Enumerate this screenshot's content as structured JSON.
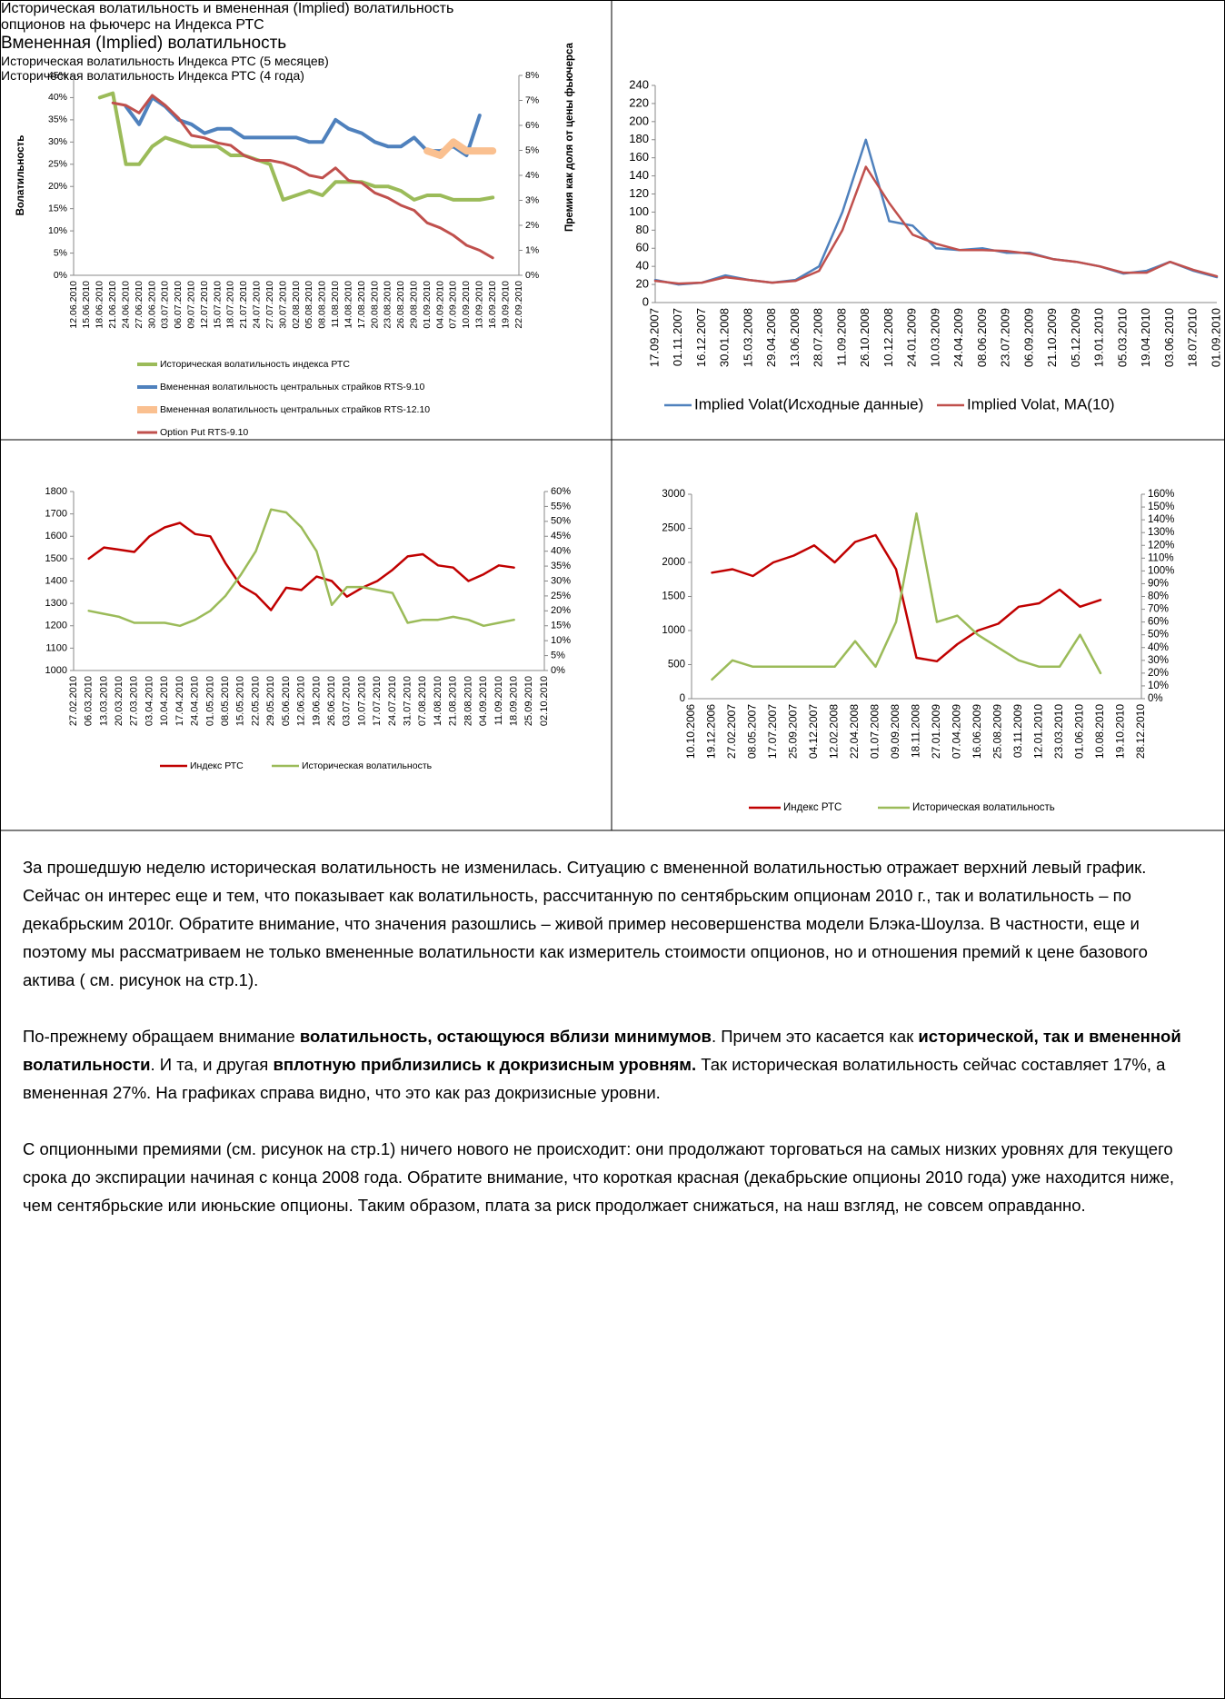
{
  "chart_data": [
    {
      "type": "line",
      "title": "Историческая волатильность и вмененная (Implied) волатильность опционов на фьючерс на Индекса РТС",
      "ylabel": "Волатильность",
      "y2label": "Премия как доля от цены фьючерса",
      "categories": [
        "12.06.2010",
        "15.06.2010",
        "18.06.2010",
        "21.06.2010",
        "24.06.2010",
        "27.06.2010",
        "30.06.2010",
        "03.07.2010",
        "06.07.2010",
        "09.07.2010",
        "12.07.2010",
        "15.07.2010",
        "18.07.2010",
        "21.07.2010",
        "24.07.2010",
        "27.07.2010",
        "30.07.2010",
        "02.08.2010",
        "05.08.2010",
        "08.08.2010",
        "11.08.2010",
        "14.08.2010",
        "17.08.2010",
        "20.08.2010",
        "23.08.2010",
        "26.08.2010",
        "29.08.2010",
        "01.09.2010",
        "04.09.2010",
        "07.09.2010",
        "10.09.2010",
        "13.09.2010",
        "16.09.2010",
        "19.09.2010",
        "22.09.2010"
      ],
      "ylim": [
        0,
        45
      ],
      "yticks": [
        {
          "value": 0,
          "label": "0%"
        },
        {
          "value": 5,
          "label": "5%"
        },
        {
          "value": 10,
          "label": "10%"
        },
        {
          "value": 15,
          "label": "15%"
        },
        {
          "value": 20,
          "label": "20%"
        },
        {
          "value": 25,
          "label": "25%"
        },
        {
          "value": 30,
          "label": "30%"
        },
        {
          "value": 35,
          "label": "35%"
        },
        {
          "value": 40,
          "label": "40%"
        },
        {
          "value": 45,
          "label": "45%"
        }
      ],
      "y2lim": [
        0,
        8
      ],
      "y2ticks": [
        {
          "value": 0,
          "label": "0%"
        },
        {
          "value": 1,
          "label": "1%"
        },
        {
          "value": 2,
          "label": "2%"
        },
        {
          "value": 3,
          "label": "3%"
        },
        {
          "value": 4,
          "label": "4%"
        },
        {
          "value": 5,
          "label": "5%"
        },
        {
          "value": 6,
          "label": "6%"
        },
        {
          "value": 7,
          "label": "7%"
        },
        {
          "value": 8,
          "label": "8%"
        }
      ],
      "series": [
        {
          "name": "Историческая волатильность индекса РТС",
          "color": "#9bbb59",
          "values": [
            null,
            null,
            40,
            41,
            25,
            25,
            29,
            31,
            30,
            29,
            29,
            29,
            27,
            27,
            26,
            25,
            17,
            18,
            19,
            18,
            21,
            21,
            21,
            20,
            20,
            19,
            17,
            18,
            18,
            17,
            17,
            17,
            17.5,
            null,
            null
          ]
        },
        {
          "name": "Вмененная волатильность центральных страйков  RTS-9.10",
          "color": "#4f81bd",
          "values": [
            null,
            null,
            null,
            null,
            38,
            34,
            40,
            38,
            35,
            34,
            32,
            33,
            33,
            31,
            31,
            31,
            31,
            31,
            30,
            30,
            35,
            33,
            32,
            30,
            29,
            29,
            31,
            28,
            28,
            29,
            27,
            36,
            null,
            null,
            null
          ]
        },
        {
          "name": "Вмененная волатильность центральных страйков  RTS-12.10",
          "color": "#fac090",
          "values": [
            null,
            null,
            null,
            null,
            null,
            null,
            null,
            null,
            null,
            null,
            null,
            null,
            null,
            null,
            null,
            null,
            null,
            null,
            null,
            null,
            null,
            null,
            null,
            null,
            null,
            null,
            null,
            28,
            27,
            30,
            28,
            28,
            28,
            null,
            null
          ]
        },
        {
          "name": "Option Put RTS-9.10",
          "color": "#c0504d",
          "axis": "y2",
          "values": [
            null,
            null,
            null,
            6.9,
            6.8,
            6.5,
            7.2,
            6.8,
            6.3,
            5.6,
            5.5,
            5.3,
            5.2,
            4.8,
            4.6,
            4.6,
            4.5,
            4.3,
            4.0,
            3.9,
            4.3,
            3.8,
            3.7,
            3.3,
            3.1,
            2.8,
            2.6,
            2.1,
            1.9,
            1.6,
            1.2,
            1.0,
            0.7,
            null,
            null
          ]
        }
      ]
    },
    {
      "type": "line",
      "title": "Вмененная (Implied) волатильность",
      "categories": [
        "17.09.2007",
        "01.11.2007",
        "16.12.2007",
        "30.01.2008",
        "15.03.2008",
        "29.04.2008",
        "13.06.2008",
        "28.07.2008",
        "11.09.2008",
        "26.10.2008",
        "10.12.2008",
        "24.01.2009",
        "10.03.2009",
        "24.04.2009",
        "08.06.2009",
        "23.07.2009",
        "06.09.2009",
        "21.10.2009",
        "05.12.2009",
        "19.01.2010",
        "05.03.2010",
        "19.04.2010",
        "03.06.2010",
        "18.07.2010",
        "01.09.2010"
      ],
      "ylim": [
        0,
        240
      ],
      "yticks": [
        0,
        20,
        40,
        60,
        80,
        100,
        120,
        140,
        160,
        180,
        200,
        220,
        240
      ],
      "series": [
        {
          "name": "Implied Volat(Исходные данные)",
          "color": "#4f81bd",
          "values": [
            25,
            20,
            22,
            30,
            25,
            22,
            25,
            40,
            100,
            180,
            90,
            85,
            60,
            58,
            60,
            55,
            55,
            48,
            45,
            40,
            32,
            35,
            45,
            35,
            28
          ]
        },
        {
          "name": "Implied Volat, MA(10)",
          "color": "#c0504d",
          "values": [
            24,
            21,
            22,
            28,
            25,
            22,
            24,
            35,
            80,
            150,
            110,
            75,
            65,
            58,
            58,
            57,
            54,
            48,
            45,
            40,
            33,
            33,
            45,
            36,
            29
          ]
        }
      ]
    },
    {
      "type": "line",
      "title": "Историческая волатильность  Индекса РТС (5 месяцев)",
      "categories": [
        "27.02.2010",
        "06.03.2010",
        "13.03.2010",
        "20.03.2010",
        "27.03.2010",
        "03.04.2010",
        "10.04.2010",
        "17.04.2010",
        "24.04.2010",
        "01.05.2010",
        "08.05.2010",
        "15.05.2010",
        "22.05.2010",
        "29.05.2010",
        "05.06.2010",
        "12.06.2010",
        "19.06.2010",
        "26.06.2010",
        "03.07.2010",
        "10.07.2010",
        "17.07.2010",
        "24.07.2010",
        "31.07.2010",
        "07.08.2010",
        "14.08.2010",
        "21.08.2010",
        "28.08.2010",
        "04.09.2010",
        "11.09.2010",
        "18.09.2010",
        "25.09.2010",
        "02.10.2010"
      ],
      "ylim": [
        1000,
        1800
      ],
      "yticks": [
        1000,
        1100,
        1200,
        1300,
        1400,
        1500,
        1600,
        1700,
        1800
      ],
      "y2lim": [
        0,
        60
      ],
      "y2ticks": [
        {
          "value": 0,
          "label": "0%"
        },
        {
          "value": 5,
          "label": "5%"
        },
        {
          "value": 10,
          "label": "10%"
        },
        {
          "value": 15,
          "label": "15%"
        },
        {
          "value": 20,
          "label": "20%"
        },
        {
          "value": 25,
          "label": "25%"
        },
        {
          "value": 30,
          "label": "30%"
        },
        {
          "value": 35,
          "label": "35%"
        },
        {
          "value": 40,
          "label": "40%"
        },
        {
          "value": 45,
          "label": "45%"
        },
        {
          "value": 50,
          "label": "50%"
        },
        {
          "value": 55,
          "label": "55%"
        },
        {
          "value": 60,
          "label": "60%"
        }
      ],
      "series": [
        {
          "name": "Индекс РТС",
          "color": "#c00000",
          "values": [
            null,
            1500,
            1550,
            1540,
            1530,
            1600,
            1640,
            1660,
            1610,
            1600,
            1480,
            1380,
            1340,
            1270,
            1370,
            1360,
            1420,
            1400,
            1330,
            1370,
            1400,
            1450,
            1510,
            1520,
            1470,
            1460,
            1400,
            1430,
            1470,
            1460,
            null,
            null
          ]
        },
        {
          "name": "Историческая волатильность",
          "color": "#9bbb59",
          "axis": "y2",
          "values": [
            null,
            20,
            19,
            18,
            16,
            16,
            16,
            15,
            17,
            20,
            25,
            32,
            40,
            54,
            53,
            48,
            40,
            22,
            28,
            28,
            27,
            26,
            16,
            17,
            17,
            18,
            17,
            15,
            16,
            17,
            null,
            null
          ]
        }
      ]
    },
    {
      "type": "line",
      "title": "Историческая волатильность Индекса РТС  (4 года)",
      "categories": [
        "10.10.2006",
        "19.12.2006",
        "27.02.2007",
        "08.05.2007",
        "17.07.2007",
        "25.09.2007",
        "04.12.2007",
        "12.02.2008",
        "22.04.2008",
        "01.07.2008",
        "09.09.2008",
        "18.11.2008",
        "27.01.2009",
        "07.04.2009",
        "16.06.2009",
        "25.08.2009",
        "03.11.2009",
        "12.01.2010",
        "23.03.2010",
        "01.06.2010",
        "10.08.2010",
        "19.10.2010",
        "28.12.2010"
      ],
      "ylim": [
        0,
        3000
      ],
      "yticks": [
        0,
        500,
        1000,
        1500,
        2000,
        2500,
        3000
      ],
      "y2lim": [
        0,
        160
      ],
      "y2ticks": [
        {
          "value": 0,
          "label": "0%"
        },
        {
          "value": 10,
          "label": "10%"
        },
        {
          "value": 20,
          "label": "20%"
        },
        {
          "value": 30,
          "label": "30%"
        },
        {
          "value": 40,
          "label": "40%"
        },
        {
          "value": 50,
          "label": "50%"
        },
        {
          "value": 60,
          "label": "60%"
        },
        {
          "value": 70,
          "label": "70%"
        },
        {
          "value": 80,
          "label": "80%"
        },
        {
          "value": 90,
          "label": "90%"
        },
        {
          "value": 100,
          "label": "100%"
        },
        {
          "value": 110,
          "label": "110%"
        },
        {
          "value": 120,
          "label": "120%"
        },
        {
          "value": 130,
          "label": "130%"
        },
        {
          "value": 140,
          "label": "140%"
        },
        {
          "value": 150,
          "label": "150%"
        },
        {
          "value": 160,
          "label": "160%"
        }
      ],
      "series": [
        {
          "name": "Индекс РТС",
          "color": "#c00000",
          "values": [
            null,
            1850,
            1900,
            1800,
            2000,
            2100,
            2250,
            2000,
            2300,
            2400,
            1900,
            600,
            550,
            800,
            1000,
            1100,
            1350,
            1400,
            1600,
            1350,
            1450,
            null,
            null
          ]
        },
        {
          "name": "Историческая волатильность",
          "color": "#9bbb59",
          "axis": "y2",
          "values": [
            null,
            15,
            30,
            25,
            25,
            25,
            25,
            25,
            45,
            25,
            60,
            145,
            60,
            65,
            50,
            40,
            30,
            25,
            25,
            50,
            20,
            null,
            null
          ]
        }
      ]
    }
  ],
  "text": {
    "paragraphs": [
      [
        {
          "text": "За прошедшую неделю историческая волатильность не изменилась. Ситуацию с вмененной волатильностью отражает верхний левый график. Сейчас он интерес еще и тем, что показывает как волатильность, рассчитанную по сентябрьским опционам 2010 г., так и волатильность – по декабрьским 2010г. Обратите внимание, что значения разошлись – живой пример несовершенства модели Блэка-Шоулза. В частности, еще и поэтому мы рассматриваем не только вмененные волатильности как измеритель стоимости опционов, но и отношения премий к цене базового актива ( см. рисунок на стр.1)."
        }
      ],
      [
        {
          "text": "По-прежнему обращаем внимание  "
        },
        {
          "text": "волатильность, остающуюся вблизи минимумов",
          "bold": true
        },
        {
          "text": ". Причем это касается как "
        },
        {
          "text": "исторической, так и вмененной волатильности",
          "bold": true
        },
        {
          "text": ". И та, и другая "
        },
        {
          "text": "вплотную приблизились к докризисным уровням.",
          "bold": true
        },
        {
          "text": " Так историческая волатильность сейчас составляет 17%, а вмененная 27%. На графиках справа видно, что это как раз докризисные уровни."
        }
      ],
      [
        {
          "text": "С опционными премиями (см. рисунок на стр.1) ничего нового не происходит: они продолжают торговаться на самых низких уровнях для текущего срока до экспирации начиная с конца 2008 года. Обратите внимание, что короткая красная (декабрьские опционы 2010 года) уже находится ниже, чем сентябрьские или июньские опционы.  Таким образом, плата за риск продолжает снижаться, на наш взгляд, не совсем оправданно."
        }
      ]
    ]
  }
}
